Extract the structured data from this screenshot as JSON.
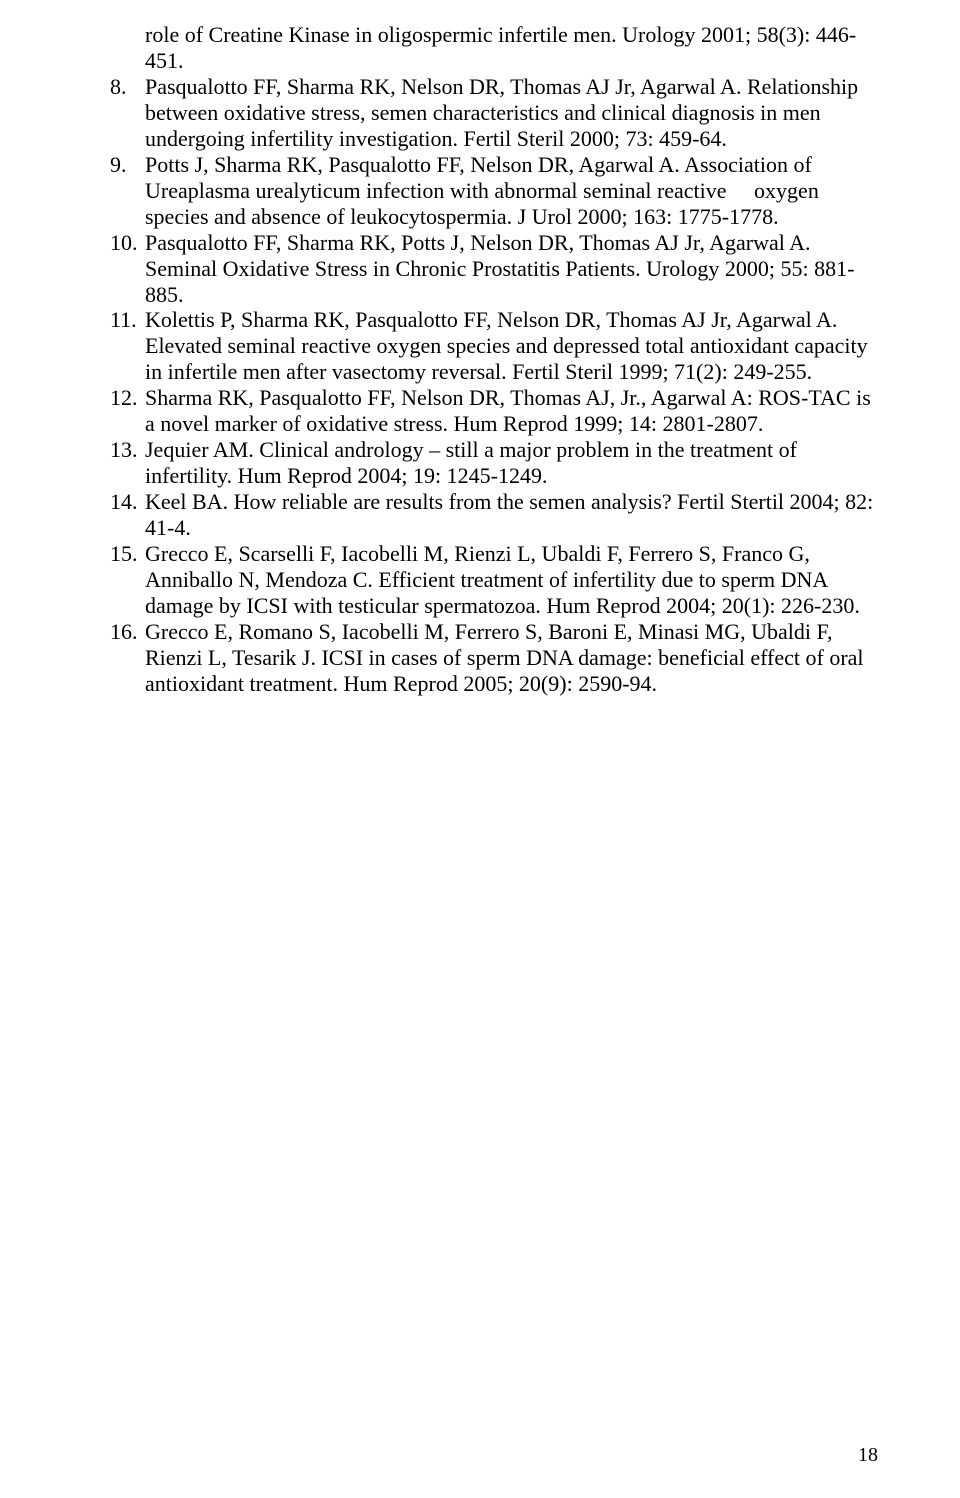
{
  "page_number": "18",
  "refs": [
    {
      "num": "",
      "text": "role of Creatine Kinase in oligospermic infertile men. Urology 2001; 58(3): 446-451."
    },
    {
      "num": "8.",
      "text": "Pasqualotto FF, Sharma RK, Nelson DR, Thomas AJ Jr, Agarwal A. Relationship between oxidative stress, semen characteristics and clinical diagnosis in men undergoing infertility investigation. Fertil Steril 2000; 73: 459-64."
    },
    {
      "num": "9.",
      "text": "Potts J, Sharma RK, Pasqualotto FF, Nelson DR, Agarwal A. Association of Ureaplasma urealyticum infection with abnormal seminal reactive     oxygen species and absence of leukocytospermia. J Urol 2000; 163: 1775-1778."
    },
    {
      "num": "10.",
      "text": "Pasqualotto FF, Sharma RK, Potts J, Nelson DR, Thomas AJ Jr, Agarwal A. Seminal Oxidative Stress in Chronic Prostatitis Patients. Urology 2000; 55: 881-885."
    },
    {
      "num": "11.",
      "text": "Kolettis P, Sharma RK, Pasqualotto FF, Nelson DR, Thomas AJ Jr, Agarwal A. Elevated seminal reactive oxygen species and depressed total antioxidant capacity in infertile men after vasectomy reversal. Fertil Steril 1999; 71(2): 249-255."
    },
    {
      "num": "12.",
      "text": "Sharma RK, Pasqualotto FF, Nelson DR, Thomas AJ, Jr., Agarwal A: ROS-TAC is a novel marker of oxidative stress. Hum Reprod 1999; 14: 2801-2807."
    },
    {
      "num": "13.",
      "text": "Jequier AM. Clinical andrology – still a major problem in the treatment of infertility. Hum Reprod 2004; 19: 1245-1249."
    },
    {
      "num": "14.",
      "text": "Keel BA. How reliable are results from the semen analysis? Fertil Stertil 2004; 82: 41-4."
    },
    {
      "num": "15.",
      "text": "Grecco E, Scarselli F, Iacobelli M, Rienzi L, Ubaldi F, Ferrero S, Franco G, Anniballo N, Mendoza C. Efficient treatment of infertility due to sperm DNA damage by ICSI with testicular spermatozoa. Hum Reprod 2004; 20(1): 226-230."
    },
    {
      "num": "16.",
      "text": "Grecco E, Romano S, Iacobelli M, Ferrero S, Baroni E, Minasi MG, Ubaldi F, Rienzi L, Tesarik J. ICSI in cases of sperm DNA damage: beneficial effect of oral antioxidant treatment. Hum Reprod 2005; 20(9): 2590-94."
    }
  ]
}
